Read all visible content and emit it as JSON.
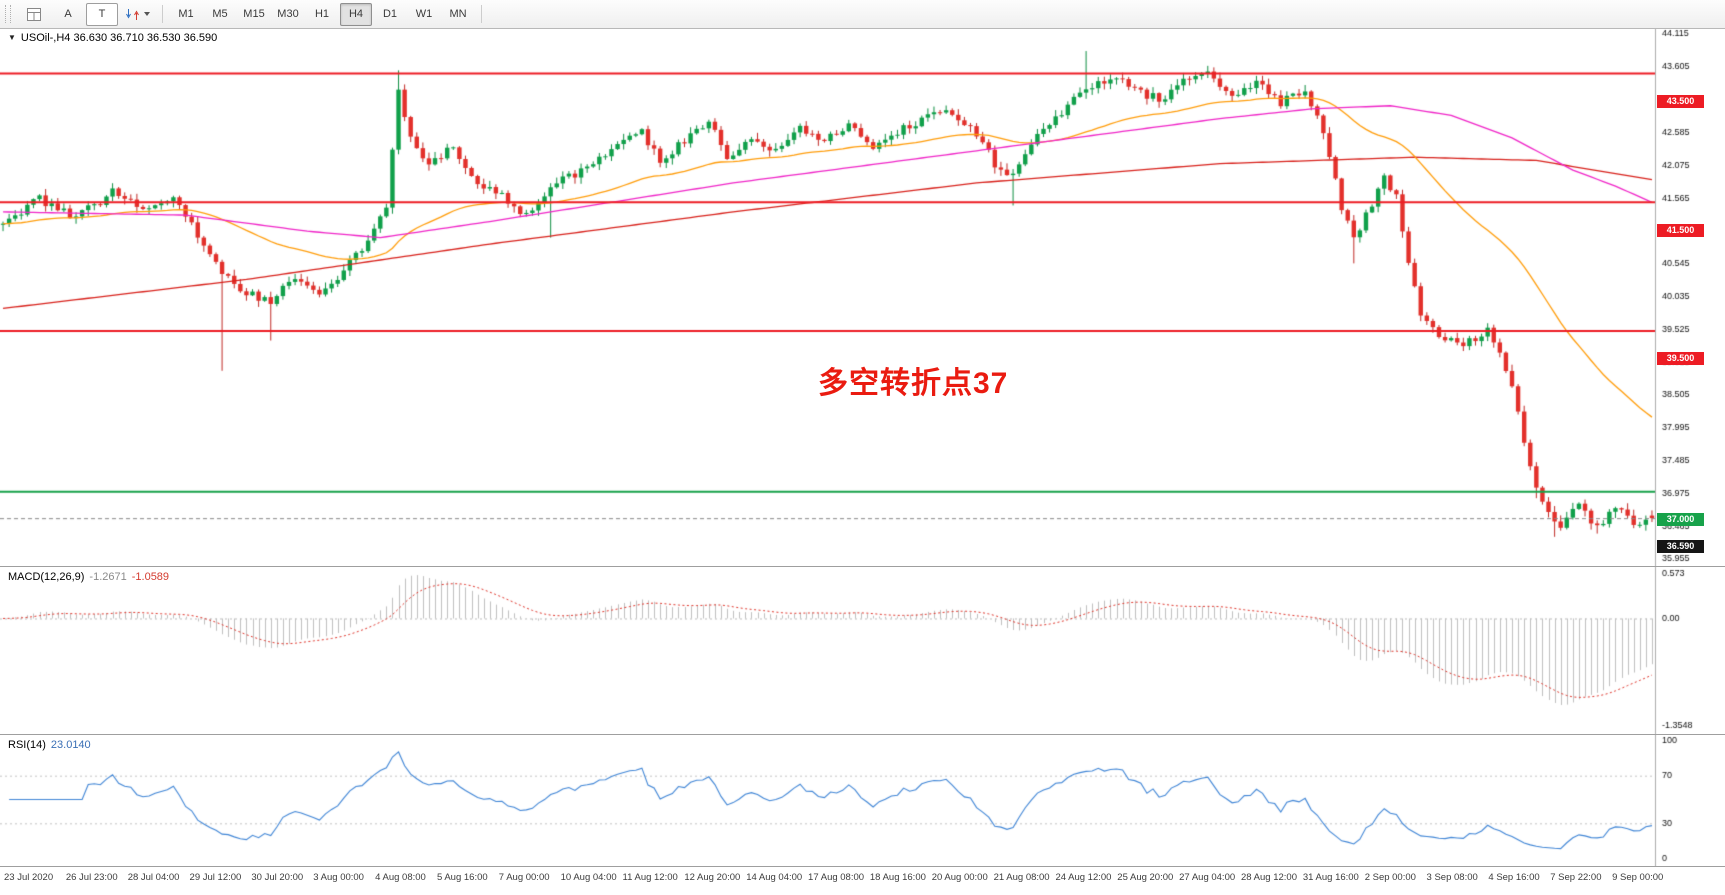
{
  "toolbar": {
    "a_label": "A",
    "t_label": "T",
    "timeframes": [
      {
        "label": "M1",
        "active": false
      },
      {
        "label": "M5",
        "active": false
      },
      {
        "label": "M15",
        "active": false
      },
      {
        "label": "M30",
        "active": false
      },
      {
        "label": "H1",
        "active": false
      },
      {
        "label": "H4",
        "active": true
      },
      {
        "label": "D1",
        "active": false
      },
      {
        "label": "W1",
        "active": false
      },
      {
        "label": "MN",
        "active": false
      }
    ]
  },
  "main_chart": {
    "header": "USOil-,H4 36.630 36.710 36.530 36.590",
    "annotation": "多空转折点37",
    "levels": [
      {
        "price": 43.5,
        "label": "43.500",
        "color": "#ed1c24"
      },
      {
        "price": 41.5,
        "label": "41.500",
        "color": "#ed1c24"
      },
      {
        "price": 39.5,
        "label": "39.500",
        "color": "#ed1c24"
      },
      {
        "price": 37.0,
        "label": "37.000",
        "color": "#17a24a"
      }
    ],
    "current_price": {
      "value": 36.59,
      "label": "36.590"
    },
    "y_axis": {
      "min": 35.955,
      "max": 44.115,
      "step": 0.51
    },
    "colors": {
      "bull": "#10a04a",
      "bear": "#e3302b",
      "bull_wick": "#0e8f42",
      "bear_wick": "#c02a26",
      "ma_orange": "#ff9d0a",
      "ma_magenta": "#f024c8",
      "ma_red": "#d8201a",
      "current_line": "#888888"
    }
  },
  "macd_panel": {
    "title": "MACD(12,26,9)",
    "value_main": "-1.2671",
    "value_signal": "-1.0589",
    "axis_ticks": [
      {
        "v": 0.573,
        "label": "0.573"
      },
      {
        "v": 0,
        "label": "0.00"
      },
      {
        "v": -1.3548,
        "label": "-1.3548"
      }
    ],
    "range": {
      "max": 0.573,
      "min": -1.3548
    },
    "colors": {
      "histogram": "#bfbfbf",
      "signal": "#e0352b"
    }
  },
  "rsi_panel": {
    "title": "RSI(14)",
    "value": "23.0140",
    "axis_ticks": [
      {
        "v": 100,
        "label": "100"
      },
      {
        "v": 70,
        "label": "70"
      },
      {
        "v": 30,
        "label": "30"
      },
      {
        "v": 0,
        "label": "0"
      }
    ],
    "level_lines": [
      70,
      30
    ],
    "colors": {
      "line": "#3f85d6",
      "levels": "#c4c4c4"
    }
  },
  "time_axis": [
    "23 Jul 2020",
    "26 Jul 23:00",
    "28 Jul 04:00",
    "29 Jul 12:00",
    "30 Jul 20:00",
    "3 Aug 00:00",
    "4 Aug 08:00",
    "5 Aug 16:00",
    "7 Aug 00:00",
    "10 Aug 04:00",
    "11 Aug 12:00",
    "12 Aug 20:00",
    "14 Aug 04:00",
    "17 Aug 08:00",
    "18 Aug 16:00",
    "20 Aug 00:00",
    "21 Aug 08:00",
    "24 Aug 12:00",
    "25 Aug 20:00",
    "27 Aug 04:00",
    "28 Aug 12:00",
    "31 Aug 16:00",
    "2 Sep 00:00",
    "3 Sep 08:00",
    "4 Sep 16:00",
    "7 Sep 22:00",
    "9 Sep 00:00"
  ],
  "chart_data": {
    "type": "candlestick",
    "symbol": "USOil",
    "timeframe": "H4",
    "bars": 272,
    "last_ohlc": {
      "open": 36.63,
      "high": 36.71,
      "low": 36.53,
      "close": 36.59
    },
    "price_path": [
      [
        0,
        41.15
      ],
      [
        6,
        41.55
      ],
      [
        12,
        41.25
      ],
      [
        18,
        41.65
      ],
      [
        24,
        41.35
      ],
      [
        28,
        41.6
      ],
      [
        32,
        41.0
      ],
      [
        36,
        40.35
      ],
      [
        40,
        40.1
      ],
      [
        44,
        39.95
      ],
      [
        48,
        40.35
      ],
      [
        52,
        40.0
      ],
      [
        56,
        40.45
      ],
      [
        60,
        40.9
      ],
      [
        63,
        41.4
      ],
      [
        65,
        43.25
      ],
      [
        67,
        42.5
      ],
      [
        70,
        42.1
      ],
      [
        74,
        42.35
      ],
      [
        78,
        41.8
      ],
      [
        82,
        41.6
      ],
      [
        86,
        41.3
      ],
      [
        90,
        41.75
      ],
      [
        95,
        42.0
      ],
      [
        100,
        42.35
      ],
      [
        105,
        42.6
      ],
      [
        108,
        42.15
      ],
      [
        112,
        42.45
      ],
      [
        116,
        42.75
      ],
      [
        119,
        42.2
      ],
      [
        123,
        42.5
      ],
      [
        127,
        42.3
      ],
      [
        131,
        42.65
      ],
      [
        135,
        42.45
      ],
      [
        139,
        42.7
      ],
      [
        143,
        42.4
      ],
      [
        147,
        42.6
      ],
      [
        151,
        42.8
      ],
      [
        155,
        42.95
      ],
      [
        159,
        42.7
      ],
      [
        163,
        42.1
      ],
      [
        166,
        41.9
      ],
      [
        169,
        42.4
      ],
      [
        173,
        42.8
      ],
      [
        177,
        43.2
      ],
      [
        182,
        43.45
      ],
      [
        186,
        43.25
      ],
      [
        190,
        43.1
      ],
      [
        194,
        43.35
      ],
      [
        198,
        43.5
      ],
      [
        202,
        43.2
      ],
      [
        206,
        43.35
      ],
      [
        210,
        43.05
      ],
      [
        214,
        43.2
      ],
      [
        216,
        42.9
      ],
      [
        218,
        42.2
      ],
      [
        220,
        41.4
      ],
      [
        222,
        40.9
      ],
      [
        224,
        41.3
      ],
      [
        227,
        41.85
      ],
      [
        229,
        41.6
      ],
      [
        231,
        40.6
      ],
      [
        233,
        39.8
      ],
      [
        236,
        39.45
      ],
      [
        240,
        39.3
      ],
      [
        244,
        39.5
      ],
      [
        246,
        39.2
      ],
      [
        248,
        38.6
      ],
      [
        250,
        37.8
      ],
      [
        252,
        37.1
      ],
      [
        254,
        36.7
      ],
      [
        256,
        36.5
      ],
      [
        259,
        36.8
      ],
      [
        262,
        36.45
      ],
      [
        265,
        36.75
      ],
      [
        268,
        36.5
      ],
      [
        271,
        36.59
      ]
    ],
    "wick_events": [
      {
        "bar": 36,
        "low": 38.88
      },
      {
        "bar": 44,
        "low": 39.35
      },
      {
        "bar": 65,
        "high": 43.55
      },
      {
        "bar": 90,
        "low": 40.95
      },
      {
        "bar": 166,
        "low": 41.45
      },
      {
        "bar": 178,
        "high": 43.85
      },
      {
        "bar": 198,
        "high": 43.62
      },
      {
        "bar": 222,
        "low": 40.55
      },
      {
        "bar": 252,
        "low": 36.9
      },
      {
        "bar": 255,
        "low": 36.3
      },
      {
        "bar": 262,
        "low": 36.35
      }
    ],
    "moving_averages": {
      "orange_period": 45,
      "magenta_path": [
        [
          0,
          41.35
        ],
        [
          30,
          41.3
        ],
        [
          50,
          41.05
        ],
        [
          62,
          40.95
        ],
        [
          80,
          41.2
        ],
        [
          100,
          41.5
        ],
        [
          120,
          41.8
        ],
        [
          140,
          42.05
        ],
        [
          160,
          42.3
        ],
        [
          180,
          42.55
        ],
        [
          200,
          42.8
        ],
        [
          215,
          42.95
        ],
        [
          228,
          43.0
        ],
        [
          238,
          42.85
        ],
        [
          248,
          42.5
        ],
        [
          258,
          42.0
        ],
        [
          265,
          41.75
        ],
        [
          271,
          41.5
        ]
      ],
      "red_path": [
        [
          0,
          39.85
        ],
        [
          40,
          40.3
        ],
        [
          80,
          40.85
        ],
        [
          120,
          41.35
        ],
        [
          160,
          41.8
        ],
        [
          200,
          42.1
        ],
        [
          232,
          42.2
        ],
        [
          252,
          42.15
        ],
        [
          271,
          41.85
        ]
      ]
    },
    "indicators": {
      "macd": {
        "fast": 12,
        "slow": 26,
        "signal": 9,
        "last_main": -1.2671,
        "last_signal": -1.0589
      },
      "rsi": {
        "period": 14,
        "last": 23.014
      }
    }
  }
}
